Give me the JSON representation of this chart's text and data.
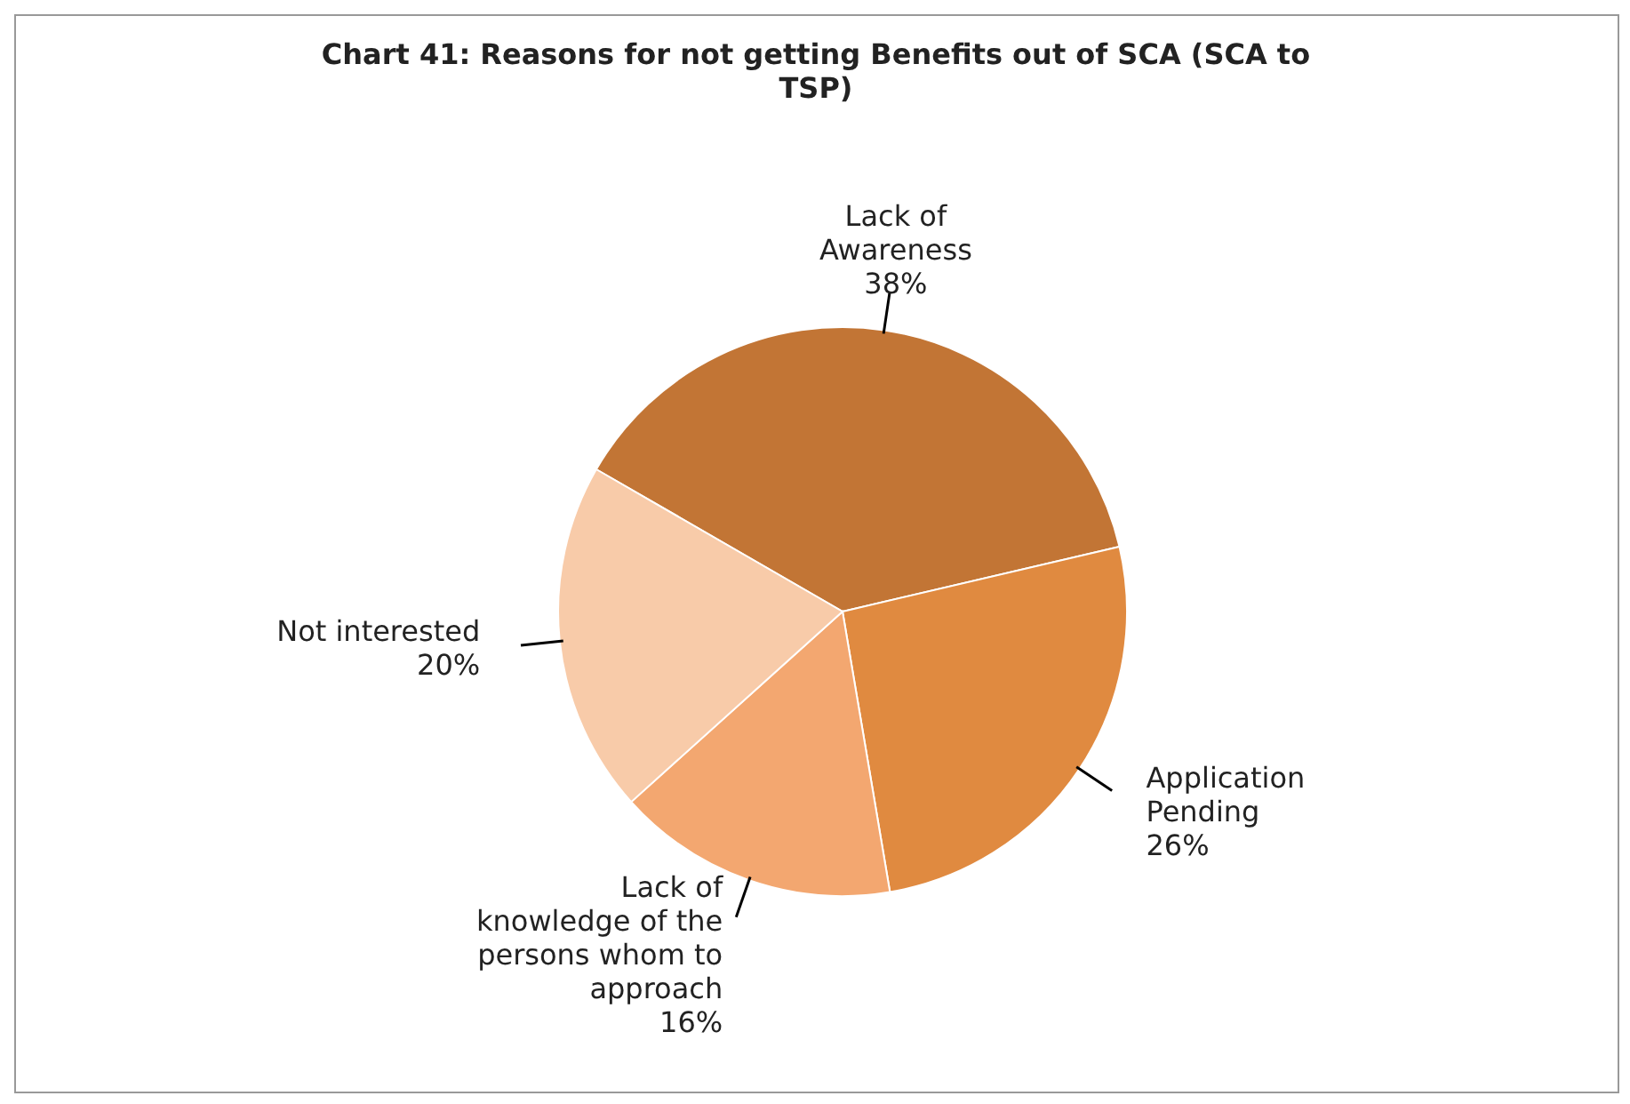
{
  "chart_data": {
    "type": "pie",
    "title": "Chart 41: Reasons for not getting Benefits out of SCA (SCA to TSP)",
    "categories": [
      "Lack of Awareness",
      "Application Pending",
      "Lack of knowledge of the persons whom to approach",
      "Not interested"
    ],
    "values": [
      38,
      26,
      16,
      20
    ],
    "value_labels": [
      "38%",
      "26%",
      "16%",
      "20%"
    ],
    "colors": [
      "#c27535",
      "#e08a40",
      "#f3a770",
      "#f8cba9"
    ]
  }
}
